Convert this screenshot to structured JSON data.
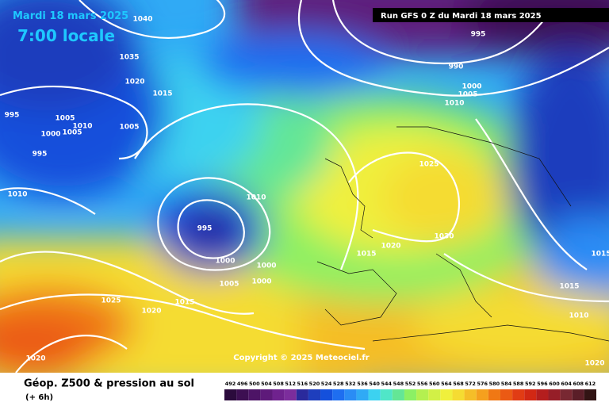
{
  "header": {
    "date": "Mardi 18 mars 2025",
    "time": "7:00 locale",
    "run": "Run GFS 0 Z du Mardi 18 mars 2025"
  },
  "copyright": "Copyright © 2025 Meteociel.fr",
  "footer": {
    "title": "Géop. Z500 & pression au sol",
    "step": "(+ 6h)"
  },
  "isobar_labels": [
    1040,
    1035,
    1020,
    1015,
    995,
    1005,
    1010,
    1000,
    1005,
    1005,
    995,
    1010,
    1010,
    995,
    1000,
    1000,
    1005,
    1000,
    1015,
    1020,
    1030,
    1025,
    1025,
    1020,
    1015,
    1020,
    995,
    990,
    1000,
    1005,
    1010,
    1015,
    1010,
    1020,
    1015
  ],
  "scale": {
    "values": [
      492,
      496,
      500,
      504,
      508,
      512,
      516,
      520,
      524,
      528,
      532,
      536,
      540,
      544,
      548,
      552,
      556,
      560,
      564,
      568,
      572,
      576,
      580,
      584,
      588,
      592,
      596,
      600,
      604,
      608,
      612
    ],
    "colors": [
      "#2b0b3c",
      "#3d0f52",
      "#4d1466",
      "#5e1a7a",
      "#6f228e",
      "#7c2d9c",
      "#2a2a9c",
      "#1e3ebd",
      "#1450dc",
      "#1e6ef0",
      "#2a8cf5",
      "#30aaf5",
      "#3cd2f0",
      "#50e6c8",
      "#64e696",
      "#8cf064",
      "#b4f050",
      "#d2f046",
      "#f0f03c",
      "#f5dc32",
      "#f5be28",
      "#f5a01e",
      "#f07814",
      "#eb5a14",
      "#e13c14",
      "#d22814",
      "#b41e1e",
      "#961e28",
      "#782832",
      "#5a1e28",
      "#321414"
    ]
  }
}
